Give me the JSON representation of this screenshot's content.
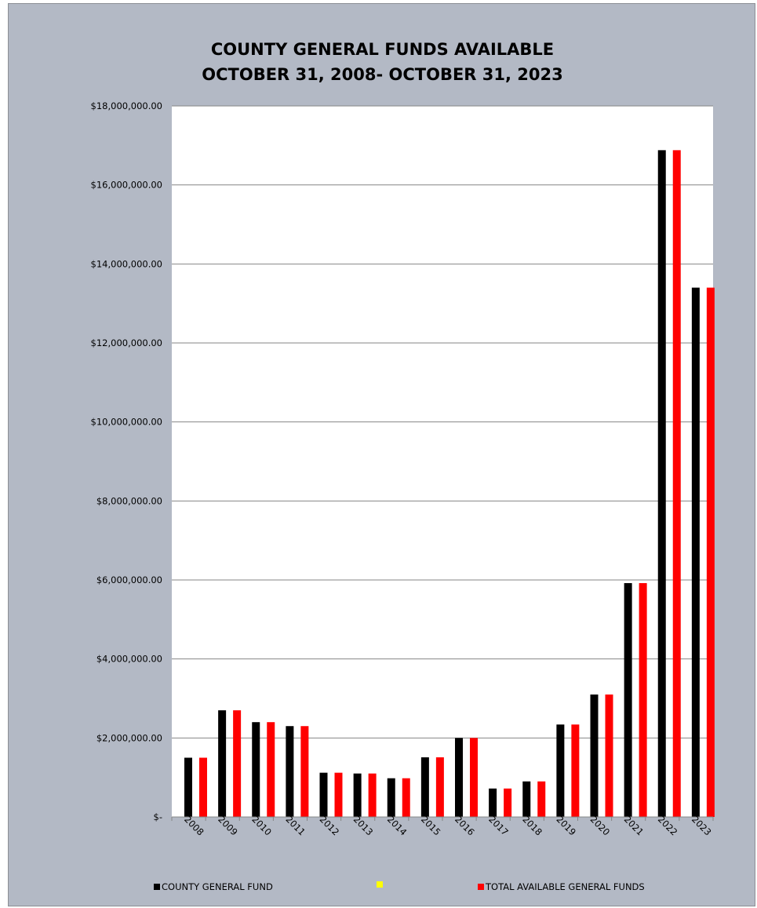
{
  "chart_data": {
    "type": "bar",
    "title": [
      "COUNTY GENERAL FUNDS AVAILABLE",
      "OCTOBER 31, 2008- OCTOBER 31, 2023"
    ],
    "categories": [
      "2008",
      "2009",
      "2010",
      "2011",
      "2012",
      "2013",
      "2014",
      "2015",
      "2016",
      "2017",
      "2018",
      "2019",
      "2020",
      "2021",
      "2022",
      "2023"
    ],
    "series": [
      {
        "name": "COUNTY GENERAL FUND",
        "color": "#000000",
        "values": [
          1500000,
          2700000,
          2400000,
          2300000,
          1120000,
          1100000,
          980000,
          1510000,
          2000000,
          720000,
          900000,
          2340000,
          3100000,
          5920000,
          16880000,
          13400000
        ]
      },
      {
        "name": "",
        "color": "#ffff00",
        "values": [
          0,
          0,
          0,
          0,
          0,
          0,
          0,
          0,
          0,
          0,
          0,
          0,
          0,
          0,
          0,
          0
        ]
      },
      {
        "name": "TOTAL AVAILABLE GENERAL FUNDS",
        "color": "#ff0000",
        "values": [
          1500000,
          2700000,
          2400000,
          2300000,
          1120000,
          1100000,
          980000,
          1510000,
          2000000,
          720000,
          900000,
          2340000,
          3100000,
          5920000,
          16880000,
          13400000
        ]
      }
    ],
    "ylim": [
      0,
      18000000
    ],
    "yticks": [
      0,
      2000000,
      4000000,
      6000000,
      8000000,
      10000000,
      12000000,
      14000000,
      16000000,
      18000000
    ],
    "ytick_labels": [
      "$-",
      "$2,000,000.00",
      "$4,000,000.00",
      "$6,000,000.00",
      "$8,000,000.00",
      "$10,000,000.00",
      "$12,000,000.00",
      "$14,000,000.00",
      "$16,000,000.00",
      "$18,000,000.00"
    ],
    "grid": true,
    "legend_position": "bottom",
    "background_color": "#b3b9c5",
    "plot_background_color": "#ffffff"
  }
}
